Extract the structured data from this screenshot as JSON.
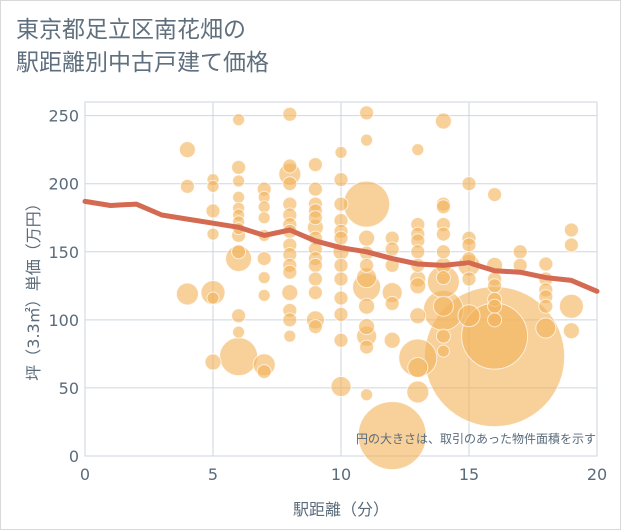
{
  "title_line1": "東京都足立区南花畑の",
  "title_line2": "駅距離別中古戸建て価格",
  "chart_data": {
    "type": "scatter",
    "title": "東京都足立区南花畑の駅距離別中古戸建て価格",
    "xlabel": "駅距離（分）",
    "ylabel": "坪（3.3㎡）単価（万円）",
    "xlim": [
      0,
      20
    ],
    "ylim": [
      0,
      260
    ],
    "xticks": [
      0,
      5,
      10,
      15,
      20
    ],
    "yticks": [
      0,
      50,
      100,
      150,
      200,
      250
    ],
    "grid": true,
    "note": "円の大きさは、取引のあった物件面積を示す",
    "colors": {
      "bubble": "#f2b35c",
      "trend": "#d46a52",
      "grid": "#cdd6df",
      "text": "#5a6b7b"
    },
    "bubbles": [
      {
        "x": 5,
        "y": 203,
        "s": 6
      },
      {
        "x": 5,
        "y": 198,
        "s": 6
      },
      {
        "x": 5,
        "y": 180,
        "s": 7
      },
      {
        "x": 5,
        "y": 163,
        "s": 6
      },
      {
        "x": 5,
        "y": 120,
        "s": 12
      },
      {
        "x": 5,
        "y": 116,
        "s": 6
      },
      {
        "x": 5,
        "y": 69,
        "s": 8
      },
      {
        "x": 4,
        "y": 225,
        "s": 8
      },
      {
        "x": 4,
        "y": 198,
        "s": 7
      },
      {
        "x": 4,
        "y": 119,
        "s": 11
      },
      {
        "x": 6,
        "y": 247,
        "s": 6
      },
      {
        "x": 6,
        "y": 212,
        "s": 7
      },
      {
        "x": 6,
        "y": 202,
        "s": 6
      },
      {
        "x": 6,
        "y": 190,
        "s": 6
      },
      {
        "x": 6,
        "y": 182,
        "s": 6
      },
      {
        "x": 6,
        "y": 177,
        "s": 6
      },
      {
        "x": 6,
        "y": 172,
        "s": 6
      },
      {
        "x": 6,
        "y": 167,
        "s": 6
      },
      {
        "x": 6,
        "y": 162,
        "s": 7
      },
      {
        "x": 6,
        "y": 150,
        "s": 7
      },
      {
        "x": 6,
        "y": 145,
        "s": 13
      },
      {
        "x": 6,
        "y": 103,
        "s": 7
      },
      {
        "x": 6,
        "y": 91,
        "s": 6
      },
      {
        "x": 6,
        "y": 73,
        "s": 19
      },
      {
        "x": 7,
        "y": 196,
        "s": 7
      },
      {
        "x": 7,
        "y": 190,
        "s": 6
      },
      {
        "x": 7,
        "y": 183,
        "s": 6
      },
      {
        "x": 7,
        "y": 175,
        "s": 6
      },
      {
        "x": 7,
        "y": 162,
        "s": 6
      },
      {
        "x": 7,
        "y": 145,
        "s": 7
      },
      {
        "x": 7,
        "y": 131,
        "s": 6
      },
      {
        "x": 7,
        "y": 118,
        "s": 6
      },
      {
        "x": 7,
        "y": 67,
        "s": 11
      },
      {
        "x": 7,
        "y": 62,
        "s": 7
      },
      {
        "x": 8,
        "y": 251,
        "s": 7
      },
      {
        "x": 8,
        "y": 213,
        "s": 7
      },
      {
        "x": 8,
        "y": 207,
        "s": 11
      },
      {
        "x": 8,
        "y": 200,
        "s": 7
      },
      {
        "x": 8,
        "y": 185,
        "s": 7
      },
      {
        "x": 8,
        "y": 177,
        "s": 7
      },
      {
        "x": 8,
        "y": 170,
        "s": 7
      },
      {
        "x": 8,
        "y": 165,
        "s": 7
      },
      {
        "x": 8,
        "y": 155,
        "s": 7
      },
      {
        "x": 8,
        "y": 148,
        "s": 7
      },
      {
        "x": 8,
        "y": 140,
        "s": 7
      },
      {
        "x": 8,
        "y": 135,
        "s": 7
      },
      {
        "x": 8,
        "y": 120,
        "s": 8
      },
      {
        "x": 8,
        "y": 107,
        "s": 7
      },
      {
        "x": 8,
        "y": 100,
        "s": 7
      },
      {
        "x": 8,
        "y": 88,
        "s": 6
      },
      {
        "x": 9,
        "y": 214,
        "s": 7
      },
      {
        "x": 9,
        "y": 196,
        "s": 7
      },
      {
        "x": 9,
        "y": 185,
        "s": 7
      },
      {
        "x": 9,
        "y": 180,
        "s": 7
      },
      {
        "x": 9,
        "y": 175,
        "s": 7
      },
      {
        "x": 9,
        "y": 168,
        "s": 8
      },
      {
        "x": 9,
        "y": 160,
        "s": 7
      },
      {
        "x": 9,
        "y": 152,
        "s": 7
      },
      {
        "x": 9,
        "y": 145,
        "s": 7
      },
      {
        "x": 9,
        "y": 140,
        "s": 7
      },
      {
        "x": 9,
        "y": 130,
        "s": 7
      },
      {
        "x": 9,
        "y": 120,
        "s": 7
      },
      {
        "x": 9,
        "y": 100,
        "s": 9
      },
      {
        "x": 9,
        "y": 95,
        "s": 7
      },
      {
        "x": 10,
        "y": 223,
        "s": 6
      },
      {
        "x": 10,
        "y": 203,
        "s": 7
      },
      {
        "x": 10,
        "y": 185,
        "s": 7
      },
      {
        "x": 10,
        "y": 173,
        "s": 7
      },
      {
        "x": 10,
        "y": 165,
        "s": 7
      },
      {
        "x": 10,
        "y": 160,
        "s": 7
      },
      {
        "x": 10,
        "y": 150,
        "s": 8
      },
      {
        "x": 10,
        "y": 140,
        "s": 7
      },
      {
        "x": 10,
        "y": 130,
        "s": 7
      },
      {
        "x": 10,
        "y": 116,
        "s": 7
      },
      {
        "x": 10,
        "y": 104,
        "s": 7
      },
      {
        "x": 10,
        "y": 85,
        "s": 7
      },
      {
        "x": 10,
        "y": 51,
        "s": 10
      },
      {
        "x": 11,
        "y": 252,
        "s": 7
      },
      {
        "x": 11,
        "y": 232,
        "s": 6
      },
      {
        "x": 11,
        "y": 185,
        "s": 23
      },
      {
        "x": 11,
        "y": 160,
        "s": 8
      },
      {
        "x": 11,
        "y": 149,
        "s": 7
      },
      {
        "x": 11,
        "y": 140,
        "s": 7
      },
      {
        "x": 11,
        "y": 131,
        "s": 10
      },
      {
        "x": 11,
        "y": 124,
        "s": 14
      },
      {
        "x": 11,
        "y": 110,
        "s": 8
      },
      {
        "x": 11,
        "y": 95,
        "s": 8
      },
      {
        "x": 11,
        "y": 88,
        "s": 10
      },
      {
        "x": 11,
        "y": 80,
        "s": 7
      },
      {
        "x": 11,
        "y": 45,
        "s": 6
      },
      {
        "x": 12,
        "y": 160,
        "s": 7
      },
      {
        "x": 12,
        "y": 152,
        "s": 7
      },
      {
        "x": 12,
        "y": 140,
        "s": 7
      },
      {
        "x": 12,
        "y": 120,
        "s": 10
      },
      {
        "x": 12,
        "y": 112,
        "s": 7
      },
      {
        "x": 12,
        "y": 85,
        "s": 8
      },
      {
        "x": 12,
        "y": 15,
        "s": 34
      },
      {
        "x": 13,
        "y": 225,
        "s": 6
      },
      {
        "x": 13,
        "y": 170,
        "s": 7
      },
      {
        "x": 13,
        "y": 163,
        "s": 7
      },
      {
        "x": 13,
        "y": 158,
        "s": 7
      },
      {
        "x": 13,
        "y": 150,
        "s": 7
      },
      {
        "x": 13,
        "y": 140,
        "s": 7
      },
      {
        "x": 13,
        "y": 130,
        "s": 8
      },
      {
        "x": 13,
        "y": 125,
        "s": 8
      },
      {
        "x": 13,
        "y": 103,
        "s": 8
      },
      {
        "x": 13,
        "y": 72,
        "s": 19
      },
      {
        "x": 13,
        "y": 65,
        "s": 10
      },
      {
        "x": 13,
        "y": 47,
        "s": 11
      },
      {
        "x": 14,
        "y": 246,
        "s": 8
      },
      {
        "x": 14,
        "y": 185,
        "s": 7
      },
      {
        "x": 14,
        "y": 183,
        "s": 7
      },
      {
        "x": 14,
        "y": 170,
        "s": 7
      },
      {
        "x": 14,
        "y": 163,
        "s": 7
      },
      {
        "x": 14,
        "y": 150,
        "s": 7
      },
      {
        "x": 14,
        "y": 140,
        "s": 8
      },
      {
        "x": 14,
        "y": 131,
        "s": 7
      },
      {
        "x": 14,
        "y": 128,
        "s": 16
      },
      {
        "x": 14,
        "y": 110,
        "s": 10
      },
      {
        "x": 14,
        "y": 107,
        "s": 20
      },
      {
        "x": 14,
        "y": 88,
        "s": 7
      },
      {
        "x": 14,
        "y": 77,
        "s": 6
      },
      {
        "x": 15,
        "y": 200,
        "s": 7
      },
      {
        "x": 15,
        "y": 160,
        "s": 7
      },
      {
        "x": 15,
        "y": 155,
        "s": 7
      },
      {
        "x": 15,
        "y": 145,
        "s": 7
      },
      {
        "x": 15,
        "y": 140,
        "s": 11
      },
      {
        "x": 15,
        "y": 130,
        "s": 7
      },
      {
        "x": 15,
        "y": 103,
        "s": 11
      },
      {
        "x": 16,
        "y": 192,
        "s": 7
      },
      {
        "x": 16,
        "y": 140,
        "s": 8
      },
      {
        "x": 16,
        "y": 130,
        "s": 7
      },
      {
        "x": 16,
        "y": 125,
        "s": 7
      },
      {
        "x": 16,
        "y": 115,
        "s": 7
      },
      {
        "x": 16,
        "y": 110,
        "s": 7
      },
      {
        "x": 16,
        "y": 100,
        "s": 7
      },
      {
        "x": 16,
        "y": 88,
        "s": 33
      },
      {
        "x": 16,
        "y": 73,
        "s": 70
      },
      {
        "x": 17,
        "y": 150,
        "s": 7
      },
      {
        "x": 17,
        "y": 140,
        "s": 7
      },
      {
        "x": 18,
        "y": 141,
        "s": 7
      },
      {
        "x": 18,
        "y": 130,
        "s": 7
      },
      {
        "x": 18,
        "y": 122,
        "s": 7
      },
      {
        "x": 18,
        "y": 117,
        "s": 7
      },
      {
        "x": 18,
        "y": 110,
        "s": 7
      },
      {
        "x": 18,
        "y": 94,
        "s": 10
      },
      {
        "x": 19,
        "y": 166,
        "s": 7
      },
      {
        "x": 19,
        "y": 155,
        "s": 7
      },
      {
        "x": 19,
        "y": 110,
        "s": 12
      },
      {
        "x": 19,
        "y": 92,
        "s": 8
      }
    ],
    "trend": {
      "x": [
        0,
        1,
        2,
        3,
        4,
        5,
        6,
        7,
        8,
        9,
        10,
        11,
        12,
        13,
        14,
        15,
        16,
        17,
        18,
        19,
        20
      ],
      "y": [
        187,
        184,
        185,
        177,
        174,
        171,
        168,
        162,
        166,
        158,
        153,
        150,
        145,
        141,
        140,
        142,
        136,
        135,
        131,
        129,
        121
      ]
    }
  }
}
